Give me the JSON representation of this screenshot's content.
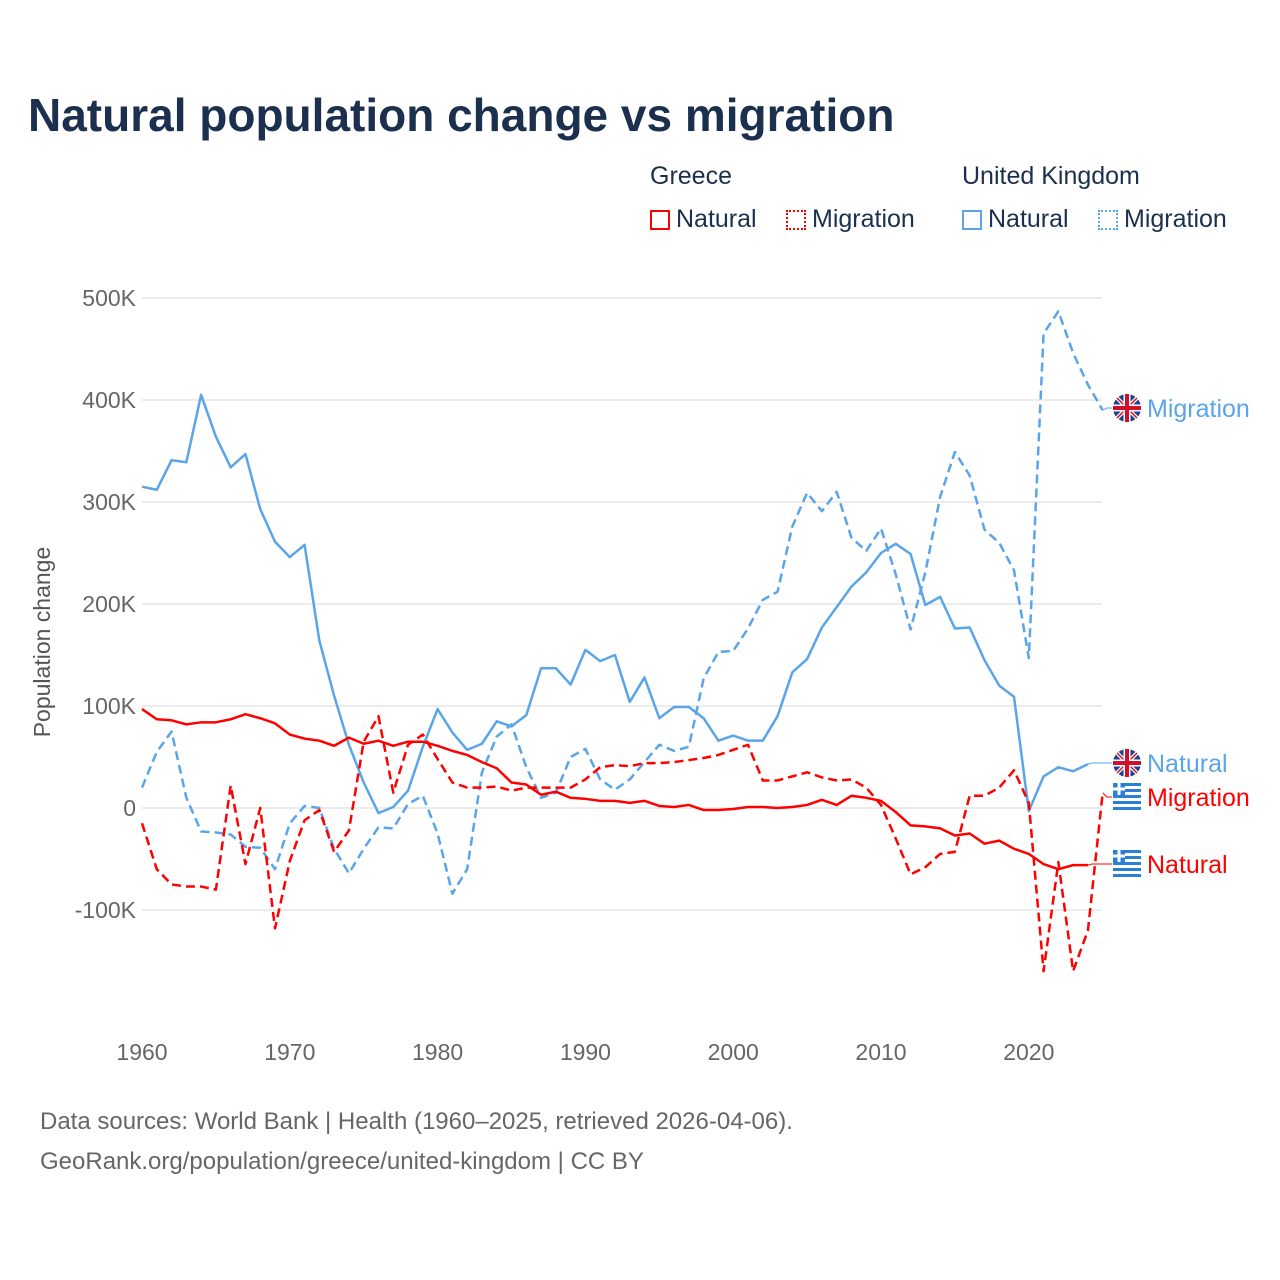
{
  "title": "Natural population change vs migration",
  "legend": {
    "groups": [
      {
        "name": "Greece",
        "items": [
          {
            "label": "Natural",
            "style": "solid"
          },
          {
            "label": "Migration",
            "style": "dotted"
          }
        ],
        "color": "#ff0000"
      },
      {
        "name": "United Kingdom",
        "items": [
          {
            "label": "Natural",
            "style": "solid"
          },
          {
            "label": "Migration",
            "style": "dotted"
          }
        ],
        "color": "#5aa5ea"
      }
    ]
  },
  "sources": [
    "Data sources: World Bank | Health (1960–2025, retrieved 2026-04-06).",
    "GeoRank.org/population/greece/united-kingdom | CC BY"
  ],
  "chart_data": {
    "type": "line",
    "title": "Natural population change vs migration",
    "ylabel": "Population change",
    "xlabel": "",
    "xlim": [
      1960,
      2025
    ],
    "ylim": [
      -200000,
      500000
    ],
    "x_ticks": [
      1960,
      1970,
      1980,
      1990,
      2000,
      2010,
      2020
    ],
    "x_tick_labels": [
      "1960",
      "1970",
      "1980",
      "1990",
      "2000",
      "2010",
      "2020"
    ],
    "y_ticks": [
      -100000,
      0,
      100000,
      200000,
      300000,
      400000,
      500000
    ],
    "y_tick_labels": [
      "-100K",
      "0",
      "100K",
      "200K",
      "300K",
      "400K",
      "500K"
    ],
    "grid": true,
    "legend_position": "top-right",
    "series": [
      {
        "name": "United Kingdom Natural",
        "end_label": "Natural",
        "country": "United Kingdom",
        "color": "#5aa5ea",
        "dash": false,
        "start": 1960,
        "values_k": [
          315,
          312,
          341,
          339,
          405,
          364,
          334,
          347,
          293,
          261,
          246,
          258,
          164,
          110,
          62,
          25,
          -5,
          1,
          17,
          60,
          97,
          74,
          57,
          63,
          85,
          80,
          91,
          137,
          137,
          121,
          155,
          144,
          150,
          104,
          128,
          88,
          99,
          99,
          88,
          66,
          71,
          66,
          66,
          90,
          133,
          146,
          177,
          197,
          217,
          231,
          250,
          259,
          249,
          199,
          207,
          176,
          177,
          145,
          120,
          109,
          -3,
          31,
          40,
          36,
          43
        ]
      },
      {
        "name": "United Kingdom Migration",
        "end_label": "Migration",
        "country": "United Kingdom",
        "color": "#5aa5ea",
        "dash": true,
        "start": 1960,
        "values_k": [
          20,
          55,
          75,
          10,
          -23,
          -24,
          -26,
          -38,
          -39,
          -60,
          -15,
          2,
          0,
          -40,
          -64,
          -40,
          -19,
          -20,
          4,
          12,
          -25,
          -84,
          -60,
          35,
          70,
          82,
          40,
          10,
          15,
          50,
          58,
          28,
          18,
          28,
          45,
          62,
          56,
          60,
          127,
          153,
          154,
          176,
          204,
          212,
          276,
          309,
          291,
          310,
          265,
          252,
          274,
          229,
          175,
          231,
          305,
          349,
          326,
          273,
          260,
          233,
          147,
          465,
          487,
          446,
          415,
          390
        ]
      },
      {
        "name": "Greece Natural",
        "end_label": "Natural",
        "country": "Greece",
        "color": "#ff0000",
        "dash": false,
        "start": 1960,
        "values_k": [
          97,
          87,
          86,
          82,
          84,
          84,
          87,
          92,
          88,
          83,
          72,
          68,
          66,
          61,
          69,
          63,
          66,
          61,
          65,
          65,
          61,
          56,
          52,
          45,
          39,
          25,
          23,
          13,
          16,
          10,
          9,
          7,
          7,
          5,
          7,
          2,
          1,
          3,
          -2,
          -2,
          -1,
          1,
          1,
          0,
          1,
          3,
          8,
          3,
          12,
          10,
          7,
          -4,
          -17,
          -18,
          -20,
          -27,
          -25,
          -35,
          -32,
          -40,
          -45,
          -55,
          -60,
          -56,
          -56
        ]
      },
      {
        "name": "Greece Migration",
        "end_label": "Migration",
        "country": "Greece",
        "color": "#ff0000",
        "dash": true,
        "start": 1960,
        "values_k": [
          -15,
          -60,
          -75,
          -77,
          -77,
          -80,
          22,
          -55,
          0,
          -118,
          -52,
          -12,
          -2,
          -43,
          -22,
          65,
          90,
          15,
          62,
          72,
          48,
          25,
          20,
          20,
          21,
          17,
          20,
          20,
          20,
          20,
          28,
          40,
          42,
          41,
          44,
          44,
          45,
          47,
          49,
          52,
          57,
          62,
          27,
          27,
          31,
          35,
          30,
          27,
          28,
          20,
          3,
          -30,
          -65,
          -58,
          -45,
          -43,
          12,
          12,
          20,
          37,
          5,
          -160,
          -53,
          -160,
          -120,
          15
        ]
      }
    ]
  }
}
